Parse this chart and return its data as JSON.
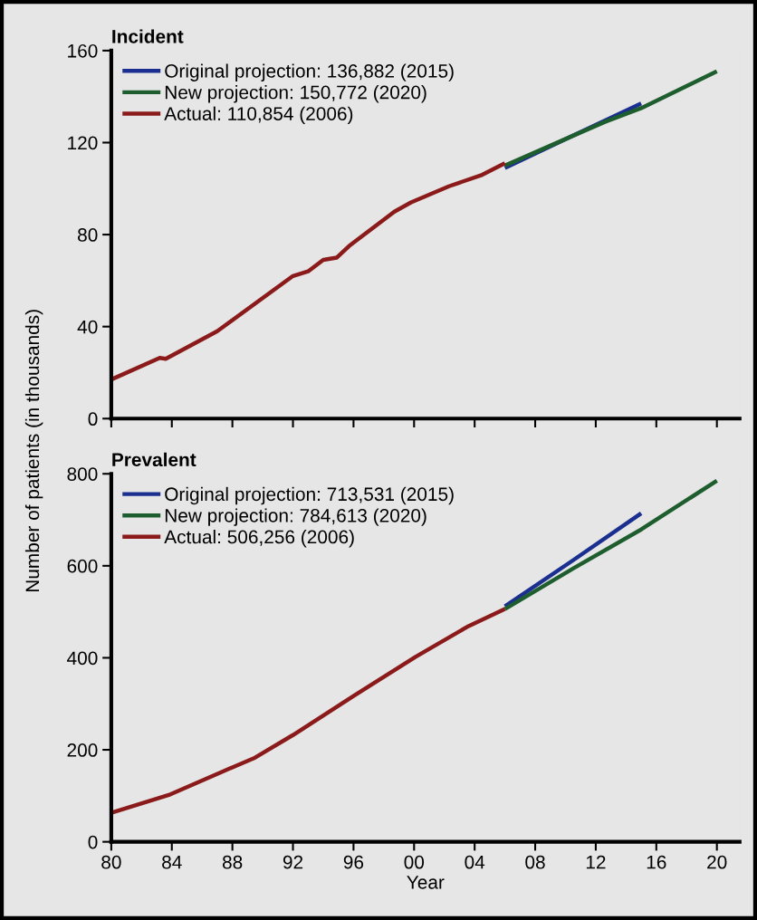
{
  "chart_data": [
    {
      "type": "line",
      "title": "Incident",
      "ylabel": "Number of patients (in thousands)",
      "xlim": [
        1980,
        2021.5
      ],
      "ylim": [
        0,
        160
      ],
      "yticks": [
        0,
        40,
        80,
        120,
        160
      ],
      "xticks": [
        {
          "value": 1980,
          "label": null
        },
        {
          "value": 1984,
          "label": null
        },
        {
          "value": 1988,
          "label": null
        },
        {
          "value": 1992,
          "label": null
        },
        {
          "value": 1996,
          "label": null
        },
        {
          "value": 2000,
          "label": null
        },
        {
          "value": 2004,
          "label": null
        },
        {
          "value": 2008,
          "label": null
        },
        {
          "value": 2012,
          "label": null
        },
        {
          "value": 2016,
          "label": null
        },
        {
          "value": 2020,
          "label": null
        }
      ],
      "tick_labels": "y",
      "legend": "top left",
      "grid": false,
      "series": [
        {
          "name": "Original projection: 136,882 (2015)",
          "color": "#1a2f8f",
          "x": [
            2006,
            2010.5,
            2015
          ],
          "values": [
            109,
            123,
            137
          ]
        },
        {
          "name": "New projection: 150,772 (2020)",
          "color": "#1e5e2e",
          "x": [
            2006,
            2010.5,
            2012.6,
            2015,
            2020
          ],
          "values": [
            110,
            123,
            129,
            135,
            151
          ]
        },
        {
          "name": "Actual: 110,854 (2006)",
          "color": "#8b1a1a",
          "x": [
            1980,
            1983.2,
            1983.6,
            1987,
            1992,
            1993,
            1994,
            1994.9,
            1995.7,
            1998.7,
            1999.8,
            2002.3,
            2004.5,
            2006
          ],
          "values": [
            17,
            26.4,
            26,
            38,
            62,
            64,
            69,
            70,
            75,
            90,
            94,
            101,
            106,
            111
          ]
        }
      ]
    },
    {
      "type": "line",
      "title": "Prevalent",
      "xlabel": "Year",
      "xlim": [
        1980,
        2021.5
      ],
      "ylim": [
        0,
        800
      ],
      "yticks": [
        0,
        200,
        400,
        600,
        800
      ],
      "xticks": [
        {
          "value": 1980,
          "label": "80"
        },
        {
          "value": 1984,
          "label": "84"
        },
        {
          "value": 1988,
          "label": "88"
        },
        {
          "value": 1992,
          "label": "92"
        },
        {
          "value": 1996,
          "label": "96"
        },
        {
          "value": 2000,
          "label": "00"
        },
        {
          "value": 2004,
          "label": "04"
        },
        {
          "value": 2008,
          "label": "08"
        },
        {
          "value": 2012,
          "label": "12"
        },
        {
          "value": 2016,
          "label": "16"
        },
        {
          "value": 2020,
          "label": "20"
        }
      ],
      "legend": "top left",
      "grid": false,
      "series": [
        {
          "name": "Original projection: 713,531 (2015)",
          "color": "#1a2f8f",
          "x": [
            2006,
            2010.5,
            2015
          ],
          "values": [
            512,
            612,
            714
          ]
        },
        {
          "name": "New projection: 784,613 (2020)",
          "color": "#1e5e2e",
          "x": [
            2006,
            2010.5,
            2015,
            2020
          ],
          "values": [
            506,
            594,
            679,
            785
          ]
        },
        {
          "name": "Actual: 506,256 (2006)",
          "color": "#8b1a1a",
          "x": [
            1980,
            1983.9,
            1987.3,
            1989.5,
            1992,
            1996,
            2000.1,
            2003.6,
            2006
          ],
          "values": [
            63,
            103,
            152,
            183,
            232,
            317,
            402,
            469,
            506
          ]
        }
      ]
    }
  ]
}
